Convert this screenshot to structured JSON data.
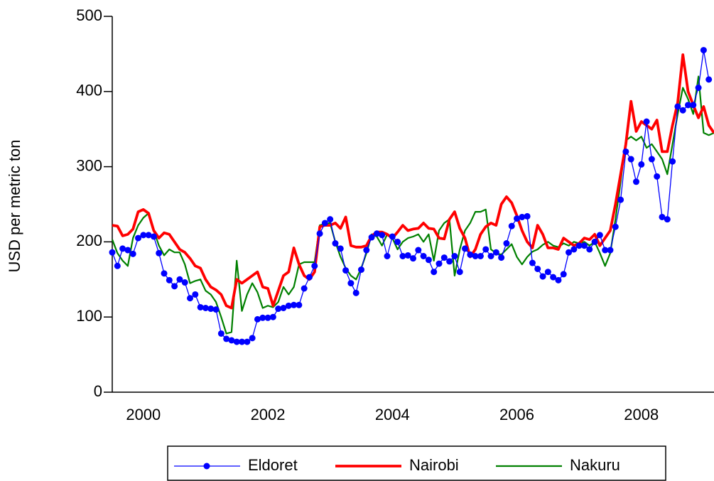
{
  "chart_data": {
    "type": "line",
    "y_label": "USD per metric ton",
    "categories": [
      null,
      null,
      null,
      null,
      null,
      null,
      "2000",
      null,
      null,
      null,
      null,
      null,
      null,
      null,
      null,
      null,
      null,
      null,
      null,
      null,
      null,
      null,
      null,
      null,
      null,
      null,
      null,
      null,
      null,
      null,
      "2002",
      null,
      null,
      null,
      null,
      null,
      null,
      null,
      null,
      null,
      null,
      null,
      null,
      null,
      null,
      null,
      null,
      null,
      null,
      null,
      null,
      null,
      null,
      null,
      "2004",
      null,
      null,
      null,
      null,
      null,
      null,
      null,
      null,
      null,
      null,
      null,
      null,
      null,
      null,
      null,
      null,
      null,
      null,
      null,
      null,
      null,
      null,
      null,
      "2006",
      null,
      null,
      null,
      null,
      null,
      null,
      null,
      null,
      null,
      null,
      null,
      null,
      null,
      null,
      null,
      null,
      null,
      null,
      null,
      null,
      null,
      null,
      null,
      "2008",
      null,
      null,
      null,
      null,
      null,
      null,
      null,
      null,
      null,
      null,
      null,
      null,
      null,
      null
    ],
    "series": [
      {
        "name": "Eldoret",
        "color": "#0000ff",
        "marker": true,
        "values": [
          186,
          168,
          191,
          189,
          184,
          205,
          209,
          209,
          207,
          185,
          158,
          149,
          141,
          150,
          146,
          125,
          130,
          113,
          112,
          111,
          110,
          78,
          71,
          69,
          67,
          67,
          67,
          72,
          97,
          99,
          99,
          100,
          111,
          112,
          115,
          116,
          116,
          138,
          153,
          168,
          211,
          225,
          230,
          198,
          191,
          162,
          145,
          132,
          163,
          189,
          206,
          211,
          209,
          181,
          207,
          200,
          181,
          182,
          178,
          189,
          181,
          176,
          160,
          171,
          179,
          174,
          181,
          160,
          191,
          183,
          181,
          181,
          190,
          181,
          186,
          179,
          198,
          221,
          231,
          233,
          234,
          172,
          164,
          154,
          160,
          153,
          149,
          157,
          186,
          190,
          195,
          195,
          190,
          200,
          209,
          189,
          189,
          220,
          256,
          320,
          310,
          280,
          303,
          360,
          310,
          287,
          233,
          230,
          307,
          380,
          375,
          382,
          382,
          405,
          455,
          416,
          null
        ]
      },
      {
        "name": "Nairobi",
        "color": "#ff0000",
        "marker": false,
        "values": [
          222,
          221,
          208,
          210,
          217,
          240,
          243,
          238,
          215,
          205,
          212,
          210,
          200,
          190,
          186,
          178,
          168,
          165,
          150,
          140,
          136,
          130,
          115,
          112,
          150,
          145,
          150,
          155,
          160,
          140,
          138,
          115,
          135,
          155,
          160,
          192,
          170,
          155,
          150,
          160,
          220,
          222,
          222,
          225,
          218,
          233,
          195,
          193,
          193,
          195,
          208,
          213,
          213,
          210,
          205,
          213,
          222,
          215,
          217,
          218,
          225,
          218,
          217,
          205,
          204,
          230,
          240,
          218,
          205,
          180,
          190,
          210,
          220,
          225,
          222,
          250,
          260,
          252,
          235,
          215,
          200,
          192,
          222,
          210,
          192,
          192,
          190,
          205,
          200,
          195,
          198,
          205,
          203,
          210,
          195,
          205,
          215,
          250,
          290,
          330,
          387,
          347,
          360,
          355,
          350,
          362,
          320,
          320,
          355,
          385,
          449,
          400,
          382,
          365,
          380,
          355,
          345
        ]
      },
      {
        "name": "Nakuru",
        "color": "#008000",
        "marker": false,
        "values": [
          203,
          185,
          175,
          168,
          205,
          222,
          232,
          238,
          215,
          195,
          182,
          190,
          186,
          186,
          170,
          145,
          148,
          150,
          135,
          130,
          120,
          100,
          78,
          80,
          175,
          108,
          130,
          145,
          133,
          112,
          115,
          113,
          120,
          140,
          130,
          140,
          170,
          173,
          173,
          173,
          222,
          224,
          225,
          200,
          180,
          165,
          155,
          150,
          165,
          185,
          210,
          207,
          195,
          210,
          205,
          190,
          200,
          205,
          207,
          210,
          200,
          210,
          175,
          215,
          225,
          230,
          155,
          190,
          215,
          225,
          240,
          240,
          243,
          190,
          185,
          183,
          190,
          197,
          180,
          170,
          180,
          187,
          190,
          196,
          200,
          195,
          193,
          198,
          195,
          200,
          198,
          200,
          195,
          200,
          185,
          168,
          185,
          230,
          280,
          335,
          340,
          335,
          340,
          325,
          330,
          320,
          310,
          290,
          330,
          370,
          405,
          390,
          370,
          420,
          345,
          342,
          345
        ]
      }
    ],
    "ylim": [
      0,
      500
    ],
    "yticks": [
      0,
      100,
      200,
      300,
      400,
      500
    ],
    "legend": "bottom"
  }
}
